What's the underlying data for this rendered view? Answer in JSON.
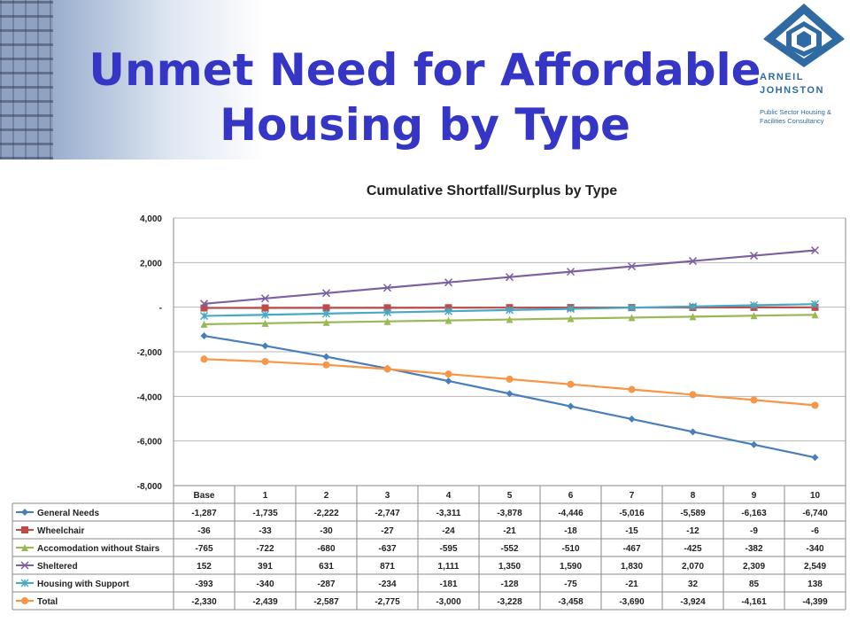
{
  "slide": {
    "title_line1": "Unmet Need for Affordable",
    "title_line2": "Housing by Type"
  },
  "logo": {
    "name_line1": "ARNEIL",
    "name_line2": "JOHNSTON",
    "tagline_line1": "Public Sector Housing &",
    "tagline_line2": "Facilities Consultancy"
  },
  "colors": {
    "title": "#3636c6",
    "logo": "#2f6aa3"
  },
  "chart_data": {
    "type": "line",
    "title": "Cumulative Shortfall/Surplus by Type",
    "xlabel": "",
    "ylabel": "",
    "ylim": [
      -8000,
      4000
    ],
    "ytick_values": [
      4000,
      2000,
      0,
      -2000,
      -4000,
      -6000,
      -8000
    ],
    "ytick_labels": [
      "4,000",
      "2,000",
      "-",
      "-2,000",
      "-4,000",
      "-6,000",
      "-8,000"
    ],
    "grid": true,
    "legend": "data-table",
    "categories": [
      "Base",
      "1",
      "2",
      "3",
      "4",
      "5",
      "6",
      "7",
      "8",
      "9",
      "10"
    ],
    "series": [
      {
        "name": "General Needs",
        "color": "#4a7ebb",
        "marker": "diamond",
        "values": [
          -1287,
          -1735,
          -2222,
          -2747,
          -3311,
          -3878,
          -4446,
          -5016,
          -5589,
          -6163,
          -6740
        ],
        "labels": [
          "-1,287",
          "-1,735",
          "-2,222",
          "-2,747",
          "-3,311",
          "-3,878",
          "-4,446",
          "-5,016",
          "-5,589",
          "-6,163",
          "-6,740"
        ]
      },
      {
        "name": "Wheelchair",
        "color": "#be4b48",
        "marker": "square",
        "values": [
          -36,
          -33,
          -30,
          -27,
          -24,
          -21,
          -18,
          -15,
          -12,
          -9,
          -6
        ],
        "labels": [
          "-36",
          "-33",
          "-30",
          "-27",
          "-24",
          "-21",
          "-18",
          "-15",
          "-12",
          "-9",
          "-6"
        ]
      },
      {
        "name": "Accomodation without Stairs",
        "color": "#98b954",
        "marker": "triangle",
        "values": [
          -765,
          -722,
          -680,
          -637,
          -595,
          -552,
          -510,
          -467,
          -425,
          -382,
          -340
        ],
        "labels": [
          "-765",
          "-722",
          "-680",
          "-637",
          "-595",
          "-552",
          "-510",
          "-467",
          "-425",
          "-382",
          "-340"
        ]
      },
      {
        "name": "Sheltered",
        "color": "#7d60a0",
        "marker": "x",
        "values": [
          152,
          391,
          631,
          871,
          1111,
          1350,
          1590,
          1830,
          2070,
          2309,
          2549
        ],
        "labels": [
          "152",
          "391",
          "631",
          "871",
          "1,111",
          "1,350",
          "1,590",
          "1,830",
          "2,070",
          "2,309",
          "2,549"
        ]
      },
      {
        "name": "Housing with Support",
        "color": "#46aac5",
        "marker": "star",
        "values": [
          -393,
          -340,
          -287,
          -234,
          -181,
          -128,
          -75,
          -21,
          32,
          85,
          138
        ],
        "labels": [
          "-393",
          "-340",
          "-287",
          "-234",
          "-181",
          "-128",
          "-75",
          "-21",
          "32",
          "85",
          "138"
        ]
      },
      {
        "name": "Total",
        "color": "#f79646",
        "marker": "circle",
        "values": [
          -2330,
          -2439,
          -2587,
          -2775,
          -3000,
          -3228,
          -3458,
          -3690,
          -3924,
          -4161,
          -4399
        ],
        "labels": [
          "-2,330",
          "-2,439",
          "-2,587",
          "-2,775",
          "-3,000",
          "-3,228",
          "-3,458",
          "-3,690",
          "-3,924",
          "-4,161",
          "-4,399"
        ]
      }
    ]
  }
}
